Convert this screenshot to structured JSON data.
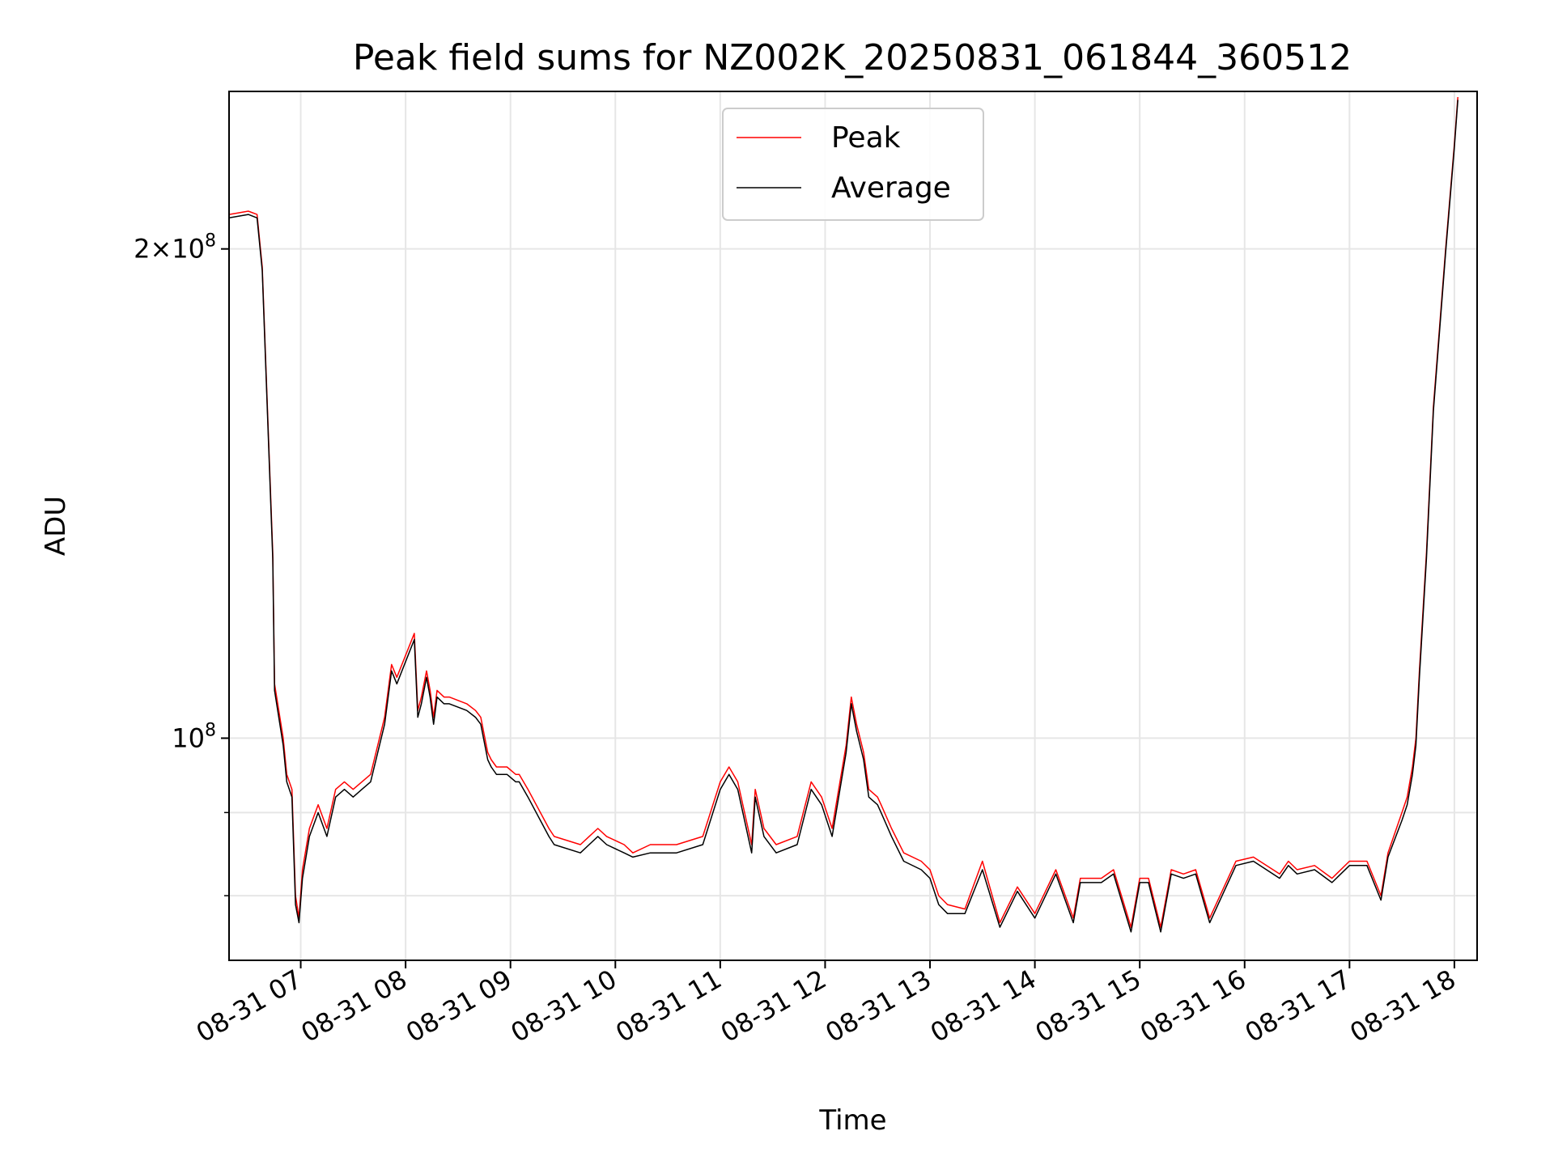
{
  "chart_data": {
    "type": "line",
    "title": "Peak field sums for NZ002K_20250831_061844_360512",
    "xlabel": "Time",
    "ylabel": "ADU",
    "x_tick_labels": [
      "08-31 07",
      "08-31 08",
      "08-31 09",
      "08-31 10",
      "08-31 11",
      "08-31 12",
      "08-31 13",
      "08-31 14",
      "08-31 15",
      "08-31 16",
      "08-31 17",
      "08-31 18"
    ],
    "y_tick_labels": [
      {
        "value": 200000000,
        "base": "2×10",
        "exp": "8"
      },
      {
        "value": 100000000,
        "base": "10",
        "exp": "8"
      }
    ],
    "y_scale": "log",
    "ylim": [
      73000000,
      250000000
    ],
    "xlim": [
      "2025-08-31 06:19",
      "2025-08-31 18:13"
    ],
    "grid": true,
    "legend_position": "top-center",
    "colors": {
      "Peak": "#ff0000",
      "Average": "#000000"
    },
    "series": [
      {
        "name": "Peak",
        "x": [
          "06:19",
          "06:30",
          "06:35",
          "06:38",
          "06:44",
          "06:45",
          "06:50",
          "06:52",
          "06:55",
          "06:57",
          "06:59",
          "07:01",
          "07:05",
          "07:10",
          "07:15",
          "07:20",
          "07:25",
          "07:30",
          "07:35",
          "07:40",
          "07:48",
          "07:52",
          "07:55",
          "08:05",
          "08:07",
          "08:09",
          "08:12",
          "08:14",
          "08:16",
          "08:18",
          "08:22",
          "08:25",
          "08:35",
          "08:40",
          "08:43",
          "08:47",
          "08:49",
          "08:52",
          "08:58",
          "09:03",
          "09:05",
          "09:10",
          "09:22",
          "09:25",
          "09:40",
          "09:45",
          "09:50",
          "09:55",
          "10:05",
          "10:10",
          "10:20",
          "10:35",
          "10:50",
          "11:00",
          "11:05",
          "11:10",
          "11:18",
          "11:20",
          "11:25",
          "11:32",
          "11:44",
          "11:52",
          "11:58",
          "12:04",
          "12:12",
          "12:15",
          "12:18",
          "12:22",
          "12:25",
          "12:30",
          "12:32",
          "12:38",
          "12:45",
          "12:55",
          "13:00",
          "13:05",
          "13:10",
          "13:20",
          "13:30",
          "13:40",
          "13:50",
          "14:00",
          "14:12",
          "14:22",
          "14:26",
          "14:38",
          "14:45",
          "14:55",
          "15:00",
          "15:05",
          "15:12",
          "15:18",
          "15:25",
          "15:32",
          "15:40",
          "15:55",
          "16:05",
          "16:20",
          "16:25",
          "16:30",
          "16:40",
          "16:50",
          "17:00",
          "17:10",
          "17:18",
          "17:22",
          "17:30",
          "17:33",
          "17:36",
          "17:38",
          "17:40",
          "17:44",
          "17:48",
          "17:55",
          "18:00",
          "18:02"
        ],
        "values": [
          210000000,
          211000000,
          210000000,
          195000000,
          130000000,
          108000000,
          100000000,
          95000000,
          93000000,
          80000000,
          77500000,
          83000000,
          88000000,
          91000000,
          88000000,
          93000000,
          94000000,
          93000000,
          94000000,
          95000000,
          103000000,
          111000000,
          109000000,
          116000000,
          104000000,
          106000000,
          110000000,
          107000000,
          103000000,
          107000000,
          106000000,
          106000000,
          105000000,
          104000000,
          103000000,
          98000000,
          97000000,
          96000000,
          96000000,
          95000000,
          95000000,
          93000000,
          88000000,
          87000000,
          86000000,
          87000000,
          88000000,
          87000000,
          86000000,
          85000000,
          86000000,
          86000000,
          87000000,
          94000000,
          96000000,
          94000000,
          86000000,
          93000000,
          88000000,
          86000000,
          87000000,
          94000000,
          92000000,
          88000000,
          99000000,
          106000000,
          102000000,
          98000000,
          93000000,
          92000000,
          91000000,
          88000000,
          85000000,
          84000000,
          83000000,
          80000000,
          79000000,
          78500000,
          84000000,
          77000000,
          81000000,
          78000000,
          83000000,
          77500000,
          82000000,
          82000000,
          83000000,
          76500000,
          82000000,
          82000000,
          76500000,
          83000000,
          82500000,
          83000000,
          77500000,
          84000000,
          84500000,
          82500000,
          84000000,
          83000000,
          83500000,
          82000000,
          84000000,
          84000000,
          80000000,
          85000000,
          90000000,
          92000000,
          96000000,
          100000000,
          110000000,
          130000000,
          160000000,
          200000000,
          232000000,
          248000000
        ]
      },
      {
        "name": "Average",
        "x": [
          "06:19",
          "06:30",
          "06:35",
          "06:38",
          "06:44",
          "06:45",
          "06:50",
          "06:52",
          "06:55",
          "06:57",
          "06:59",
          "07:01",
          "07:05",
          "07:10",
          "07:15",
          "07:20",
          "07:25",
          "07:30",
          "07:35",
          "07:40",
          "07:48",
          "07:52",
          "07:55",
          "08:05",
          "08:07",
          "08:09",
          "08:12",
          "08:14",
          "08:16",
          "08:18",
          "08:22",
          "08:25",
          "08:35",
          "08:40",
          "08:43",
          "08:47",
          "08:49",
          "08:52",
          "08:58",
          "09:03",
          "09:05",
          "09:10",
          "09:22",
          "09:25",
          "09:40",
          "09:45",
          "09:50",
          "09:55",
          "10:05",
          "10:10",
          "10:20",
          "10:35",
          "10:50",
          "11:00",
          "11:05",
          "11:10",
          "11:18",
          "11:20",
          "11:25",
          "11:32",
          "11:44",
          "11:52",
          "11:58",
          "12:04",
          "12:12",
          "12:15",
          "12:18",
          "12:22",
          "12:25",
          "12:30",
          "12:32",
          "12:38",
          "12:45",
          "12:55",
          "13:00",
          "13:05",
          "13:10",
          "13:20",
          "13:30",
          "13:40",
          "13:50",
          "14:00",
          "14:12",
          "14:22",
          "14:26",
          "14:38",
          "14:45",
          "14:55",
          "15:00",
          "15:05",
          "15:12",
          "15:18",
          "15:25",
          "15:32",
          "15:40",
          "15:55",
          "16:05",
          "16:20",
          "16:25",
          "16:30",
          "16:40",
          "16:50",
          "17:00",
          "17:10",
          "17:18",
          "17:22",
          "17:30",
          "17:33",
          "17:36",
          "17:38",
          "17:40",
          "17:44",
          "17:48",
          "17:55",
          "18:00",
          "18:02"
        ],
        "values": [
          209000000,
          210000000,
          209000000,
          194000000,
          129000000,
          107000000,
          99000000,
          94000000,
          92000000,
          79000000,
          77000000,
          82000000,
          87000000,
          90000000,
          87000000,
          92000000,
          93000000,
          92000000,
          93000000,
          94000000,
          102000000,
          110000000,
          108000000,
          115000000,
          103000000,
          105000000,
          109000000,
          106000000,
          102000000,
          106000000,
          105000000,
          105000000,
          104000000,
          103000000,
          102000000,
          97000000,
          96000000,
          95000000,
          95000000,
          94000000,
          94000000,
          92000000,
          87000000,
          86000000,
          85000000,
          86000000,
          87000000,
          86000000,
          85000000,
          84500000,
          85000000,
          85000000,
          86000000,
          93000000,
          95000000,
          93000000,
          85000000,
          92000000,
          87000000,
          85000000,
          86000000,
          93000000,
          91000000,
          87000000,
          98000000,
          105000000,
          101000000,
          97000000,
          92000000,
          91000000,
          90000000,
          87000000,
          84000000,
          83000000,
          82000000,
          79000000,
          78000000,
          78000000,
          83000000,
          76500000,
          80500000,
          77500000,
          82500000,
          77000000,
          81500000,
          81500000,
          82500000,
          76000000,
          81500000,
          81500000,
          76000000,
          82500000,
          82000000,
          82500000,
          77000000,
          83500000,
          84000000,
          82000000,
          83500000,
          82500000,
          83000000,
          81500000,
          83500000,
          83500000,
          79500000,
          84500000,
          89000000,
          91000000,
          95000000,
          99000000,
          109000000,
          129000000,
          159000000,
          199000000,
          231000000,
          247000000
        ]
      }
    ]
  }
}
